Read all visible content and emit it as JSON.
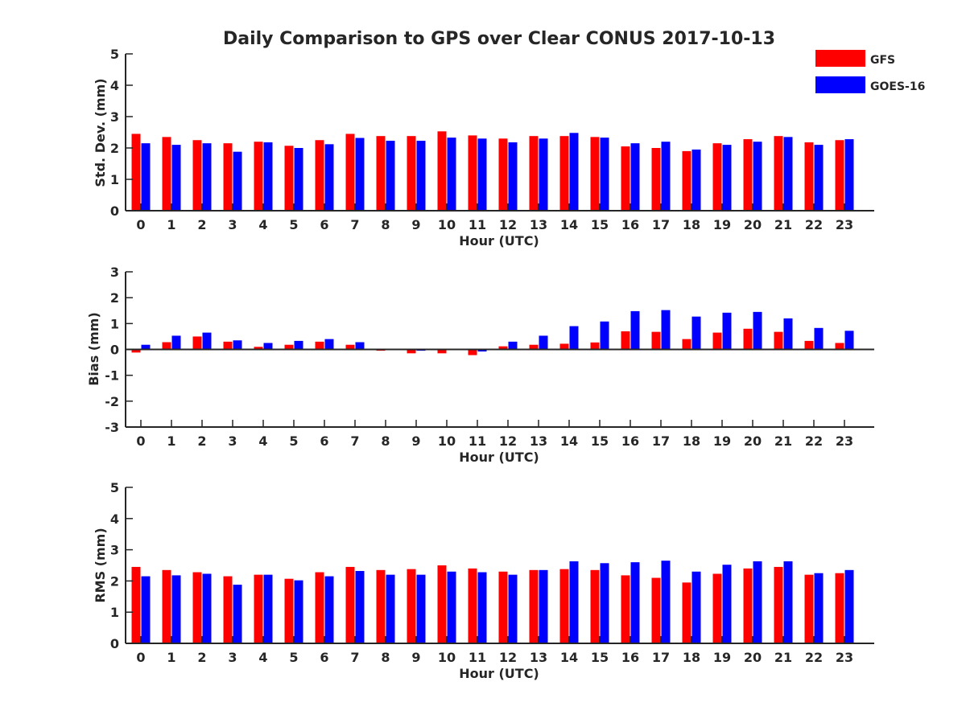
{
  "chart_data": {
    "title": "Daily Comparison to GPS over Clear CONUS 2017-10-13",
    "type": "bar",
    "legend": {
      "position": "top-right",
      "entries": [
        {
          "name": "GFS",
          "color": "#ff0000"
        },
        {
          "name": "GOES-16",
          "color": "#0000ff"
        }
      ]
    },
    "categories": [
      "0",
      "1",
      "2",
      "3",
      "4",
      "5",
      "6",
      "7",
      "8",
      "9",
      "10",
      "11",
      "12",
      "13",
      "14",
      "15",
      "16",
      "17",
      "18",
      "19",
      "20",
      "21",
      "22",
      "23"
    ],
    "panels": [
      {
        "id": "std",
        "type": "bar",
        "xlabel": "Hour (UTC)",
        "ylabel": "Std. Dev. (mm)",
        "ylim": [
          0,
          5
        ],
        "yticks": [
          0,
          1,
          2,
          3,
          4,
          5
        ],
        "series": [
          {
            "name": "GFS",
            "values": [
              2.45,
              2.35,
              2.25,
              2.15,
              2.2,
              2.07,
              2.25,
              2.45,
              2.38,
              2.38,
              2.53,
              2.4,
              2.3,
              2.38,
              2.38,
              2.35,
              2.05,
              2.0,
              1.9,
              2.15,
              2.28,
              2.38,
              2.18,
              2.25
            ]
          },
          {
            "name": "GOES-16",
            "values": [
              2.15,
              2.1,
              2.15,
              1.88,
              2.18,
              2.0,
              2.12,
              2.32,
              2.23,
              2.23,
              2.33,
              2.3,
              2.18,
              2.3,
              2.48,
              2.33,
              2.15,
              2.2,
              1.95,
              2.1,
              2.2,
              2.35,
              2.1,
              2.28
            ]
          }
        ]
      },
      {
        "id": "bias",
        "type": "bar",
        "xlabel": "Hour (UTC)",
        "ylabel": "Bias (mm)",
        "ylim": [
          -3,
          3
        ],
        "yticks": [
          -3,
          -2,
          -1,
          0,
          1,
          2,
          3
        ],
        "series": [
          {
            "name": "GFS",
            "values": [
              -0.12,
              0.28,
              0.5,
              0.3,
              0.1,
              0.18,
              0.3,
              0.18,
              -0.05,
              -0.15,
              -0.15,
              -0.22,
              0.12,
              0.18,
              0.22,
              0.27,
              0.7,
              0.68,
              0.4,
              0.65,
              0.8,
              0.68,
              0.33,
              0.25
            ]
          },
          {
            "name": "GOES-16",
            "values": [
              0.18,
              0.53,
              0.65,
              0.35,
              0.25,
              0.33,
              0.4,
              0.28,
              -0.02,
              -0.05,
              -0.03,
              -0.08,
              0.3,
              0.53,
              0.9,
              1.08,
              1.48,
              1.52,
              1.27,
              1.42,
              1.45,
              1.2,
              0.83,
              0.72
            ]
          }
        ]
      },
      {
        "id": "rms",
        "type": "bar",
        "xlabel": "Hour (UTC)",
        "ylabel": "RMS (mm)",
        "ylim": [
          0,
          5
        ],
        "yticks": [
          0,
          1,
          2,
          3,
          4,
          5
        ],
        "series": [
          {
            "name": "GFS",
            "values": [
              2.45,
              2.35,
              2.28,
              2.15,
              2.2,
              2.07,
              2.28,
              2.45,
              2.35,
              2.38,
              2.5,
              2.4,
              2.3,
              2.35,
              2.38,
              2.35,
              2.18,
              2.1,
              1.95,
              2.23,
              2.4,
              2.45,
              2.2,
              2.25
            ]
          },
          {
            "name": "GOES-16",
            "values": [
              2.15,
              2.18,
              2.23,
              1.88,
              2.2,
              2.02,
              2.15,
              2.32,
              2.2,
              2.2,
              2.3,
              2.28,
              2.2,
              2.35,
              2.63,
              2.57,
              2.6,
              2.65,
              2.3,
              2.52,
              2.63,
              2.63,
              2.25,
              2.35
            ]
          }
        ]
      }
    ]
  }
}
